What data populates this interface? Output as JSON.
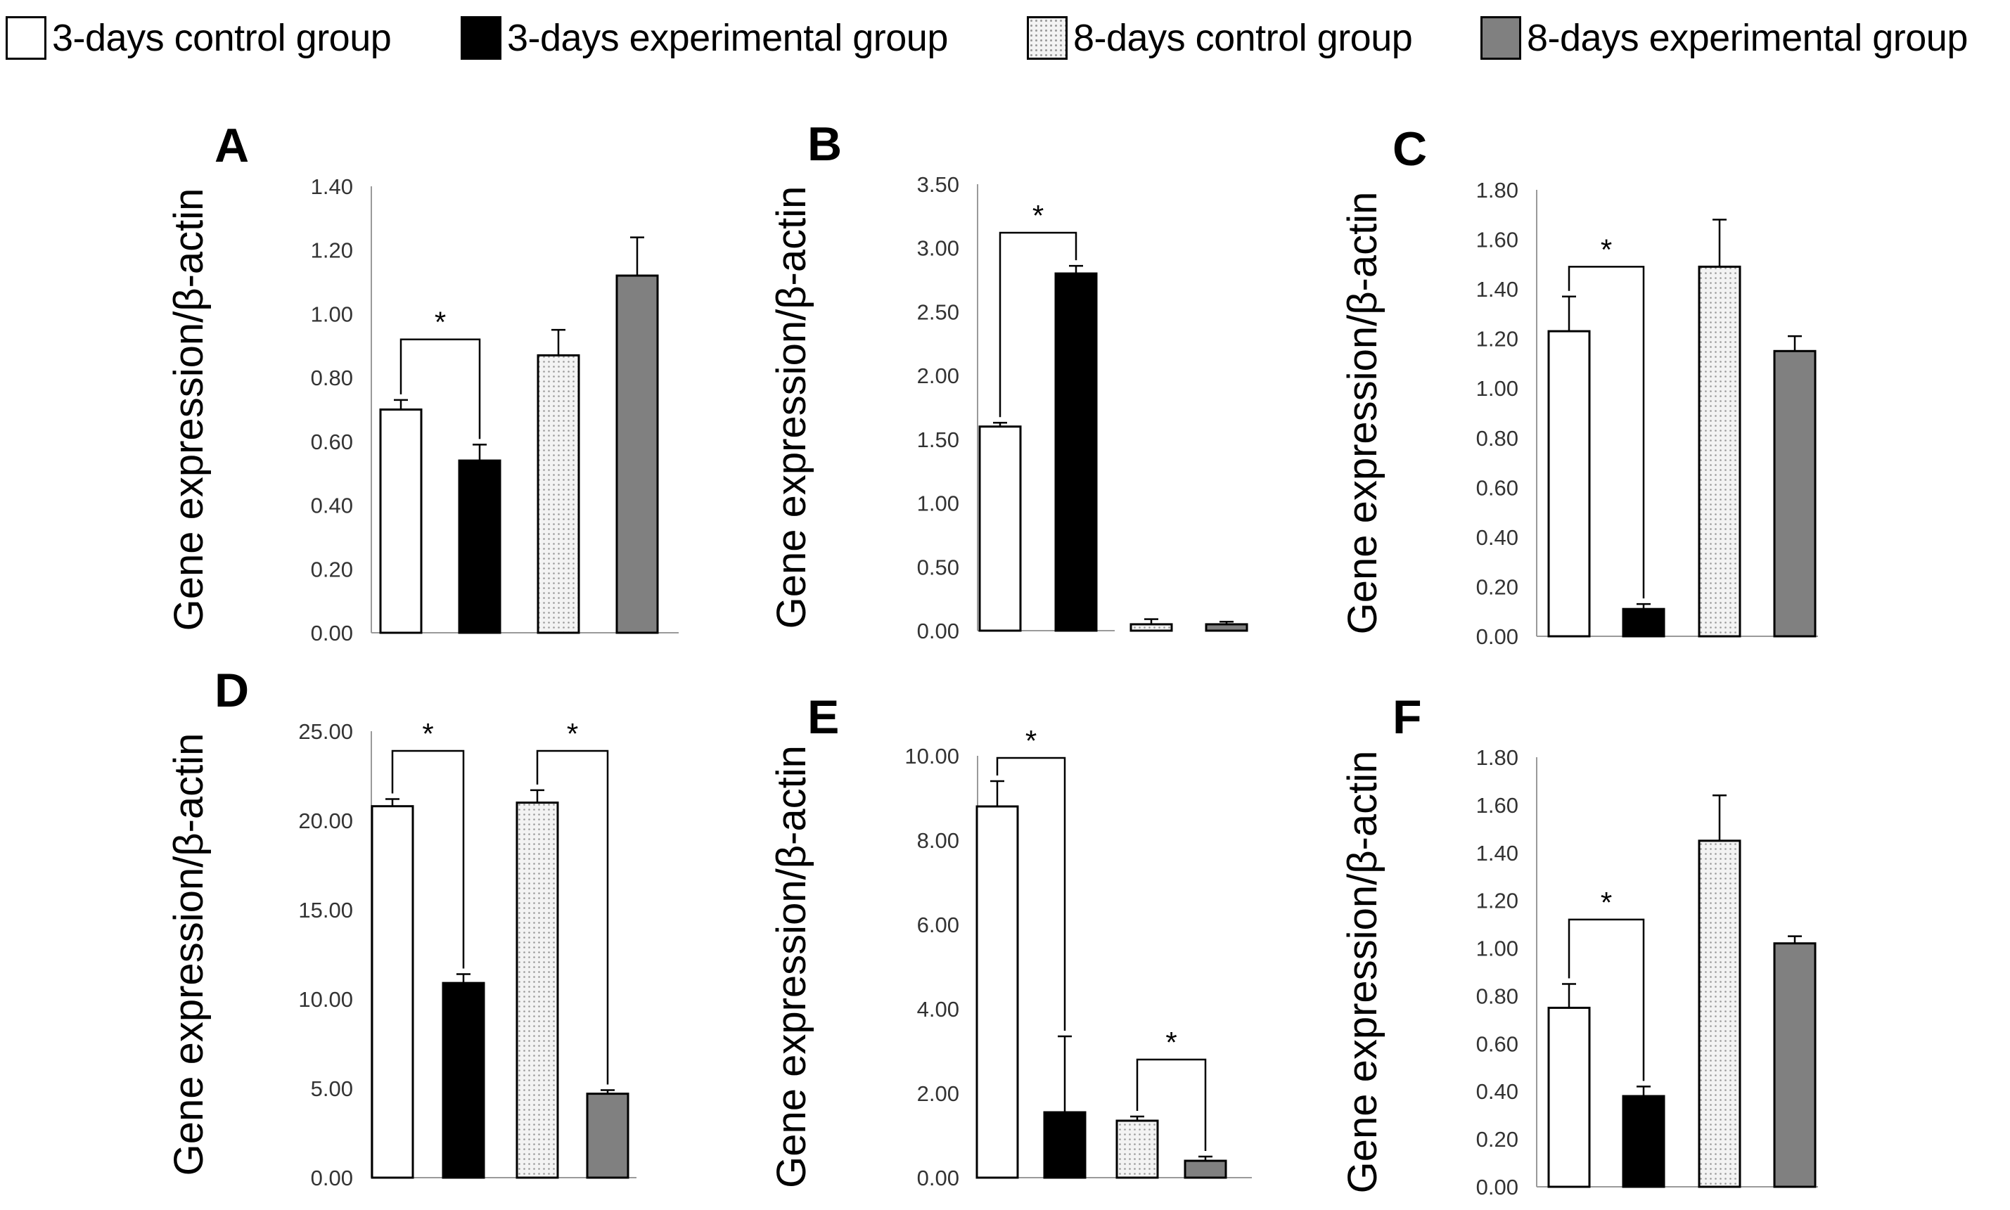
{
  "legend": [
    {
      "label": "3-days control group",
      "style": "white"
    },
    {
      "label": "3-days experimental group",
      "style": "black"
    },
    {
      "label": "8-days control group",
      "style": "dots"
    },
    {
      "label": "8-days experimental group",
      "style": "grey"
    }
  ],
  "colors": {
    "white": "#ffffff",
    "black": "#000000",
    "grey": "#808080",
    "dots_bg": "#f3f3f3",
    "axis": "#9a9a9a"
  },
  "chart_data": [
    {
      "type": "bar",
      "panel": "A",
      "ylabel": "Gene expression/β-actin",
      "ylim": [
        0,
        1.4
      ],
      "ticks": [
        "0.00",
        "0.20",
        "0.40",
        "0.60",
        "0.80",
        "1.00",
        "1.20",
        "1.40"
      ],
      "series": [
        {
          "name": "3-days control group",
          "value": 0.7,
          "error": 0.03
        },
        {
          "name": "3-days experimental group",
          "value": 0.54,
          "error": 0.05
        },
        {
          "name": "8-days control group",
          "value": 0.87,
          "error": 0.08
        },
        {
          "name": "8-days experimental group",
          "value": 1.12,
          "error": 0.12
        }
      ],
      "significance": [
        {
          "from": 0,
          "to": 1,
          "label": "*",
          "level": 0.92
        }
      ]
    },
    {
      "type": "bar",
      "panel": "B",
      "ylabel": "Gene expression/β-actin",
      "ylim": [
        0,
        3.5
      ],
      "ticks": [
        "0.00",
        "0.50",
        "1.00",
        "1.50",
        "2.00",
        "2.50",
        "3.00",
        "3.50"
      ],
      "series": [
        {
          "name": "3-days control group",
          "value": 1.6,
          "error": 0.03
        },
        {
          "name": "3-days experimental group",
          "value": 2.8,
          "error": 0.06
        },
        {
          "name": "8-days control group",
          "value": 0.05,
          "error": 0.04
        },
        {
          "name": "8-days experimental group",
          "value": 0.05,
          "error": 0.02
        }
      ],
      "significance": [
        {
          "from": 0,
          "to": 1,
          "label": "*",
          "level": 3.12
        }
      ]
    },
    {
      "type": "bar",
      "panel": "C",
      "ylabel": "Gene expression/β-actin",
      "ylim": [
        0,
        1.8
      ],
      "ticks": [
        "0.00",
        "0.20",
        "0.40",
        "0.60",
        "0.80",
        "1.00",
        "1.20",
        "1.40",
        "1.60",
        "1.80"
      ],
      "series": [
        {
          "name": "3-days control group",
          "value": 1.23,
          "error": 0.14
        },
        {
          "name": "3-days experimental group",
          "value": 0.11,
          "error": 0.02
        },
        {
          "name": "8-days control group",
          "value": 1.49,
          "error": 0.19
        },
        {
          "name": "8-days experimental group",
          "value": 1.15,
          "error": 0.06
        }
      ],
      "significance": [
        {
          "from": 0,
          "to": 1,
          "label": "*",
          "level": 1.49
        }
      ]
    },
    {
      "type": "bar",
      "panel": "D",
      "ylabel": "Gene expression/β-actin",
      "ylim": [
        0,
        25
      ],
      "ticks": [
        "0.00",
        "5.00",
        "10.00",
        "15.00",
        "20.00",
        "25.00"
      ],
      "series": [
        {
          "name": "3-days control group",
          "value": 20.8,
          "error": 0.4
        },
        {
          "name": "3-days experimental group",
          "value": 10.9,
          "error": 0.5
        },
        {
          "name": "8-days control group",
          "value": 21.0,
          "error": 0.7
        },
        {
          "name": "8-days experimental group",
          "value": 4.7,
          "error": 0.2
        }
      ],
      "significance": [
        {
          "from": 0,
          "to": 1,
          "label": "*",
          "level": 23.9
        },
        {
          "from": 2,
          "to": 3,
          "label": "*",
          "level": 23.9
        }
      ]
    },
    {
      "type": "bar",
      "panel": "E",
      "ylabel": "Gene expression/β-actin",
      "ylim": [
        0,
        10
      ],
      "ticks": [
        "0.00",
        "2.00",
        "4.00",
        "6.00",
        "8.00",
        "10.00"
      ],
      "series": [
        {
          "name": "3-days control group",
          "value": 8.8,
          "error": 0.6
        },
        {
          "name": "3-days experimental group",
          "value": 1.55,
          "error": 1.8
        },
        {
          "name": "8-days control group",
          "value": 1.35,
          "error": 0.1
        },
        {
          "name": "8-days experimental group",
          "value": 0.4,
          "error": 0.1
        }
      ],
      "significance": [
        {
          "from": 0,
          "to": 1,
          "label": "*",
          "level": 9.95
        },
        {
          "from": 2,
          "to": 3,
          "label": "*",
          "level": 2.8
        }
      ]
    },
    {
      "type": "bar",
      "panel": "F",
      "ylabel": "Gene expression/β-actin",
      "ylim": [
        0,
        1.8
      ],
      "ticks": [
        "0.00",
        "0.20",
        "0.40",
        "0.60",
        "0.80",
        "1.00",
        "1.20",
        "1.40",
        "1.60",
        "1.80"
      ],
      "series": [
        {
          "name": "3-days control group",
          "value": 0.75,
          "error": 0.1
        },
        {
          "name": "3-days experimental group",
          "value": 0.38,
          "error": 0.04
        },
        {
          "name": "8-days control group",
          "value": 1.45,
          "error": 0.19
        },
        {
          "name": "8-days experimental group",
          "value": 1.02,
          "error": 0.03
        }
      ],
      "significance": [
        {
          "from": 0,
          "to": 1,
          "label": "*",
          "level": 1.12
        }
      ]
    }
  ]
}
